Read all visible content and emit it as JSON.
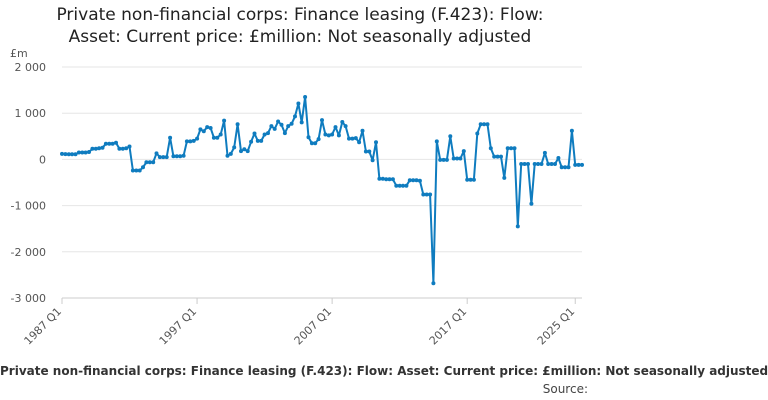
{
  "chart_data": {
    "type": "line",
    "title": "Private non-financial corps: Finance leasing (F.423): Flow: Asset: Current price: £million: Not seasonally adjusted",
    "title_lines": [
      "Private non-financial corps: Finance leasing (F.423): Flow:",
      "Asset: Current price: £million: Not seasonally adjusted"
    ],
    "ylabel": "£m",
    "xlabel": "",
    "ylim": [
      -3000,
      2000
    ],
    "y_ticks": [
      2000,
      1000,
      0,
      -1000,
      -2000,
      -3000
    ],
    "y_tick_labels": [
      "2 000",
      "1 000",
      "0",
      "-1 000",
      "-2 000",
      "-3 000"
    ],
    "x_tick_labels": [
      "1987 Q1",
      "1997 Q1",
      "2007 Q1",
      "2017 Q1",
      "2025 Q1"
    ],
    "x_tick_index": [
      0,
      40,
      80,
      120,
      152
    ],
    "grid": true,
    "line_color": "#0f7cbf",
    "legend": "Private non-financial corps: Finance leasing (F.423): Flow: Asset: Current price: £million: Not seasonally adjusted",
    "source": "Source:",
    "series": [
      {
        "name": "Private non-financial corps: Finance leasing (F.423): Flow: Asset: Current price: £million: Not seasonally adjusted",
        "start": "1987 Q1",
        "values": [
          120,
          115,
          110,
          110,
          110,
          150,
          150,
          150,
          160,
          230,
          230,
          240,
          250,
          340,
          340,
          340,
          360,
          230,
          230,
          240,
          280,
          -240,
          -240,
          -240,
          -170,
          -60,
          -60,
          -60,
          130,
          50,
          50,
          50,
          470,
          70,
          70,
          70,
          80,
          390,
          390,
          400,
          450,
          650,
          610,
          700,
          680,
          470,
          470,
          540,
          840,
          80,
          120,
          260,
          760,
          180,
          220,
          180,
          380,
          560,
          400,
          400,
          540,
          570,
          720,
          660,
          820,
          750,
          570,
          720,
          770,
          930,
          1210,
          800,
          1350,
          480,
          350,
          350,
          440,
          850,
          540,
          520,
          540,
          700,
          520,
          810,
          720,
          450,
          450,
          460,
          370,
          620,
          170,
          170,
          -20,
          370,
          -420,
          -420,
          -430,
          -430,
          -430,
          -570,
          -570,
          -570,
          -570,
          -450,
          -450,
          -450,
          -460,
          -760,
          -760,
          -760,
          -2680,
          390,
          -10,
          -10,
          -10,
          500,
          20,
          20,
          20,
          180,
          -440,
          -440,
          -440,
          560,
          760,
          760,
          760,
          240,
          60,
          60,
          60,
          -400,
          240,
          240,
          240,
          -1450,
          -100,
          -100,
          -100,
          -960,
          -100,
          -100,
          -100,
          140,
          -100,
          -100,
          -100,
          30,
          -170,
          -170,
          -170,
          620,
          -120,
          -120,
          -120
        ]
      }
    ]
  }
}
